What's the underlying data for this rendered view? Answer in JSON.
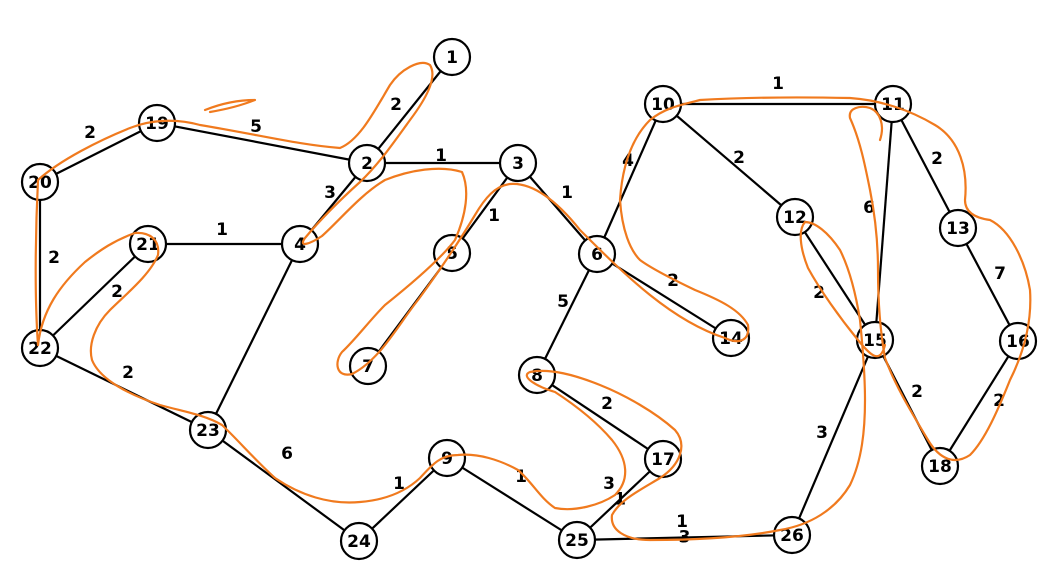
{
  "colors": {
    "edge": "#000000",
    "node_fill": "#ffffff",
    "highlight": "#f07a1e"
  },
  "nodes": [
    {
      "id": "1"
    },
    {
      "id": "2"
    },
    {
      "id": "3"
    },
    {
      "id": "4"
    },
    {
      "id": "5"
    },
    {
      "id": "6"
    },
    {
      "id": "7"
    },
    {
      "id": "8"
    },
    {
      "id": "9"
    },
    {
      "id": "10"
    },
    {
      "id": "11"
    },
    {
      "id": "12"
    },
    {
      "id": "13"
    },
    {
      "id": "14"
    },
    {
      "id": "15"
    },
    {
      "id": "16"
    },
    {
      "id": "17"
    },
    {
      "id": "18"
    },
    {
      "id": "19"
    },
    {
      "id": "20"
    },
    {
      "id": "21"
    },
    {
      "id": "22"
    },
    {
      "id": "23"
    },
    {
      "id": "24"
    },
    {
      "id": "25"
    },
    {
      "id": "26"
    }
  ],
  "edges": [
    {
      "from": "1",
      "to": "2",
      "weight": "2"
    },
    {
      "from": "19",
      "to": "2",
      "weight": "5"
    },
    {
      "from": "20",
      "to": "19",
      "weight": "2"
    },
    {
      "from": "20",
      "to": "22",
      "weight": "2"
    },
    {
      "from": "2",
      "to": "3",
      "weight": "1"
    },
    {
      "from": "2",
      "to": "4",
      "weight": "3"
    },
    {
      "from": "3",
      "to": "5",
      "weight": "1"
    },
    {
      "from": "3",
      "to": "6",
      "weight": "1"
    },
    {
      "from": "21",
      "to": "4",
      "weight": "1"
    },
    {
      "from": "21",
      "to": "22",
      "weight": "2"
    },
    {
      "from": "4",
      "to": "23",
      "weight": "4"
    },
    {
      "from": "5",
      "to": "7",
      "weight": "2"
    },
    {
      "from": "6",
      "to": "10",
      "weight": "5"
    },
    {
      "from": "6",
      "to": "14",
      "weight": "1"
    },
    {
      "from": "6",
      "to": "8",
      "weight": "2"
    },
    {
      "from": "10",
      "to": "11",
      "weight": "2"
    },
    {
      "from": "10",
      "to": "12",
      "weight": "6"
    },
    {
      "from": "11",
      "to": "13",
      "weight": "2"
    },
    {
      "from": "11",
      "to": "15",
      "weight": "7"
    },
    {
      "from": "12",
      "to": "15",
      "weight": "2"
    },
    {
      "from": "13",
      "to": "16",
      "weight": "2"
    },
    {
      "from": "16",
      "to": "18",
      "weight": "3"
    },
    {
      "from": "15",
      "to": "18",
      "weight": "2"
    },
    {
      "from": "15",
      "to": "26",
      "weight": "6"
    },
    {
      "from": "22",
      "to": "23",
      "weight": "1"
    },
    {
      "from": "23",
      "to": "24",
      "weight": "1"
    },
    {
      "from": "24",
      "to": "9",
      "weight": "2"
    },
    {
      "from": "9",
      "to": "25",
      "weight": "3"
    },
    {
      "from": "8",
      "to": "17",
      "weight": "1"
    },
    {
      "from": "17",
      "to": "25",
      "weight": "1"
    },
    {
      "from": "25",
      "to": "26",
      "weight": "3"
    }
  ]
}
